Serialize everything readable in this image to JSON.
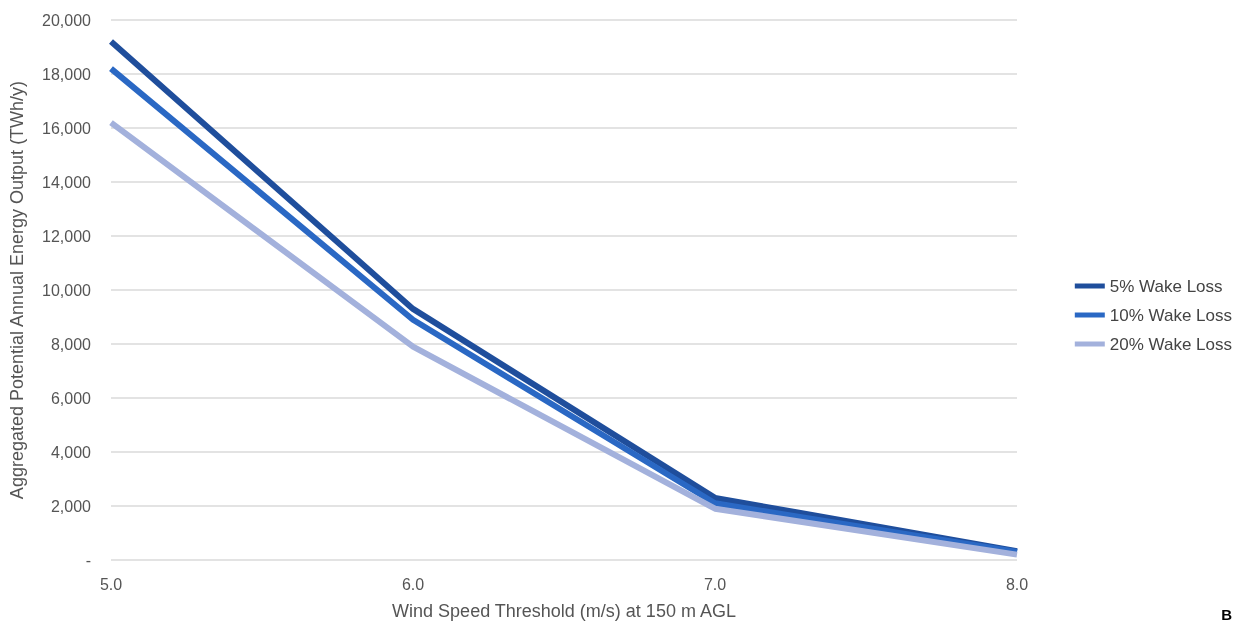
{
  "chart_data": {
    "type": "line",
    "xlabel": "Wind Speed Threshold (m/s) at 150 m AGL",
    "ylabel": "Aggregated Potential Annual Energy Output (TWh/y)",
    "x": [
      5,
      6,
      7,
      8
    ],
    "series": [
      {
        "name": "5% Wake Loss",
        "color": "#1f4e9c",
        "values": [
          19200,
          9300,
          2300,
          330
        ]
      },
      {
        "name": "10% Wake Loss",
        "color": "#2a68c4",
        "values": [
          18200,
          8900,
          2100,
          300
        ]
      },
      {
        "name": "20% Wake Loss",
        "color": "#a3b1dc",
        "values": [
          16200,
          7900,
          1900,
          200
        ]
      }
    ],
    "xlim": [
      5,
      8
    ],
    "xticks": [
      {
        "value": 5,
        "label": "5.0"
      },
      {
        "value": 6,
        "label": "6.0"
      },
      {
        "value": 7,
        "label": "7.0"
      },
      {
        "value": 8,
        "label": "8.0"
      }
    ],
    "ylim": [
      0,
      20000
    ],
    "yticks": [
      {
        "value": 0,
        "label": "-"
      },
      {
        "value": 2000,
        "label": "2,000"
      },
      {
        "value": 4000,
        "label": "4,000"
      },
      {
        "value": 6000,
        "label": "6,000"
      },
      {
        "value": 8000,
        "label": "8,000"
      },
      {
        "value": 10000,
        "label": "10,000"
      },
      {
        "value": 12000,
        "label": "12,000"
      },
      {
        "value": 14000,
        "label": "14,000"
      },
      {
        "value": 16000,
        "label": "16,000"
      },
      {
        "value": 18000,
        "label": "18,000"
      },
      {
        "value": 20000,
        "label": "20,000"
      }
    ],
    "grid": "y",
    "legend": "right",
    "marker": "none",
    "line_style": "solid",
    "annotations": [
      "B"
    ]
  }
}
